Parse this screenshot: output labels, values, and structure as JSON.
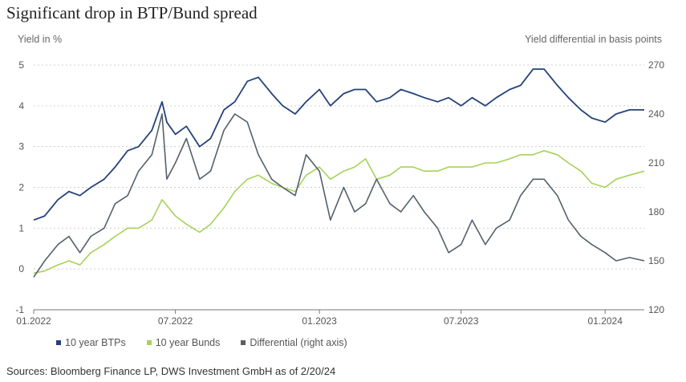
{
  "title": "Significant drop in BTP/Bund spread",
  "source": "Sources: Bloomberg Finance LP, DWS Investment GmbH as of 2/20/24",
  "colors": {
    "btp": "#24427a",
    "bund": "#a6d25a",
    "diff": "#56606a",
    "grid": "#cfcfcf",
    "axis": "#777777"
  },
  "chart_data": {
    "type": "line",
    "ylabel": "Yield in %",
    "y2label": "Yield differential in basis points",
    "ylim": [
      -1,
      5
    ],
    "y2lim": [
      120,
      270
    ],
    "yticks": [
      "-1",
      "0",
      "1",
      "2",
      "3",
      "4",
      "5"
    ],
    "y2ticks": [
      "120",
      "150",
      "180",
      "210",
      "240",
      "270"
    ],
    "xlim": [
      "2022-01-01",
      "2024-02-20"
    ],
    "xticks": [
      {
        "date": "2022-01-01",
        "label": "01.2022"
      },
      {
        "date": "2022-07-01",
        "label": "07.2022"
      },
      {
        "date": "2023-01-01",
        "label": "01.2023"
      },
      {
        "date": "2023-07-01",
        "label": "07.2023"
      },
      {
        "date": "2024-01-01",
        "label": "01.2024"
      }
    ],
    "grid": "horizontal dotted",
    "legend": "bottom-left",
    "series": [
      {
        "name": "10 year BTPs",
        "axis": "left",
        "x": [
          "2022-01-01",
          "2022-01-15",
          "2022-02-01",
          "2022-02-15",
          "2022-03-01",
          "2022-03-15",
          "2022-04-01",
          "2022-04-15",
          "2022-05-01",
          "2022-05-15",
          "2022-06-01",
          "2022-06-14",
          "2022-06-20",
          "2022-07-01",
          "2022-07-15",
          "2022-08-01",
          "2022-08-15",
          "2022-09-01",
          "2022-09-15",
          "2022-10-01",
          "2022-10-15",
          "2022-11-01",
          "2022-11-15",
          "2022-12-01",
          "2022-12-15",
          "2023-01-01",
          "2023-01-15",
          "2023-02-01",
          "2023-02-15",
          "2023-03-01",
          "2023-03-15",
          "2023-04-01",
          "2023-04-15",
          "2023-05-01",
          "2023-05-15",
          "2023-06-01",
          "2023-06-15",
          "2023-07-01",
          "2023-07-15",
          "2023-08-01",
          "2023-08-15",
          "2023-09-01",
          "2023-09-15",
          "2023-10-01",
          "2023-10-15",
          "2023-11-01",
          "2023-11-15",
          "2023-12-01",
          "2023-12-15",
          "2024-01-01",
          "2024-01-15",
          "2024-02-01",
          "2024-02-20"
        ],
        "values": [
          1.2,
          1.3,
          1.7,
          1.9,
          1.8,
          2.0,
          2.2,
          2.5,
          2.9,
          3.0,
          3.4,
          4.1,
          3.6,
          3.3,
          3.5,
          3.0,
          3.2,
          3.9,
          4.1,
          4.6,
          4.7,
          4.3,
          4.0,
          3.8,
          4.1,
          4.4,
          4.0,
          4.3,
          4.4,
          4.4,
          4.1,
          4.2,
          4.4,
          4.3,
          4.2,
          4.1,
          4.2,
          4.0,
          4.2,
          4.0,
          4.2,
          4.4,
          4.5,
          4.9,
          4.9,
          4.5,
          4.2,
          3.9,
          3.7,
          3.6,
          3.8,
          3.9,
          3.9
        ]
      },
      {
        "name": "10 year Bunds",
        "axis": "left",
        "x": [
          "2022-01-01",
          "2022-01-15",
          "2022-02-01",
          "2022-02-15",
          "2022-03-01",
          "2022-03-15",
          "2022-04-01",
          "2022-04-15",
          "2022-05-01",
          "2022-05-15",
          "2022-06-01",
          "2022-06-14",
          "2022-07-01",
          "2022-07-15",
          "2022-08-01",
          "2022-08-15",
          "2022-09-01",
          "2022-09-15",
          "2022-10-01",
          "2022-10-15",
          "2022-11-01",
          "2022-11-15",
          "2022-12-01",
          "2022-12-15",
          "2023-01-01",
          "2023-01-15",
          "2023-02-01",
          "2023-02-15",
          "2023-03-01",
          "2023-03-15",
          "2023-04-01",
          "2023-04-15",
          "2023-05-01",
          "2023-05-15",
          "2023-06-01",
          "2023-06-15",
          "2023-07-01",
          "2023-07-15",
          "2023-08-01",
          "2023-08-15",
          "2023-09-01",
          "2023-09-15",
          "2023-10-01",
          "2023-10-15",
          "2023-11-01",
          "2023-11-15",
          "2023-12-01",
          "2023-12-15",
          "2024-01-01",
          "2024-01-15",
          "2024-02-01",
          "2024-02-20"
        ],
        "values": [
          -0.1,
          -0.05,
          0.1,
          0.2,
          0.1,
          0.4,
          0.6,
          0.8,
          1.0,
          1.0,
          1.2,
          1.7,
          1.3,
          1.1,
          0.9,
          1.1,
          1.5,
          1.9,
          2.2,
          2.3,
          2.1,
          2.0,
          1.9,
          2.3,
          2.5,
          2.2,
          2.4,
          2.5,
          2.7,
          2.2,
          2.3,
          2.5,
          2.5,
          2.4,
          2.4,
          2.5,
          2.5,
          2.5,
          2.6,
          2.6,
          2.7,
          2.8,
          2.8,
          2.9,
          2.8,
          2.6,
          2.4,
          2.1,
          2.0,
          2.2,
          2.3,
          2.4
        ]
      },
      {
        "name": "Differential (right axis)",
        "axis": "right",
        "x": [
          "2022-01-01",
          "2022-01-15",
          "2022-02-01",
          "2022-02-15",
          "2022-03-01",
          "2022-03-15",
          "2022-04-01",
          "2022-04-15",
          "2022-05-01",
          "2022-05-15",
          "2022-06-01",
          "2022-06-14",
          "2022-06-20",
          "2022-07-01",
          "2022-07-15",
          "2022-08-01",
          "2022-08-15",
          "2022-09-01",
          "2022-09-15",
          "2022-10-01",
          "2022-10-15",
          "2022-11-01",
          "2022-11-15",
          "2022-12-01",
          "2022-12-15",
          "2023-01-01",
          "2023-01-15",
          "2023-02-01",
          "2023-02-15",
          "2023-03-01",
          "2023-03-15",
          "2023-04-01",
          "2023-04-15",
          "2023-05-01",
          "2023-05-15",
          "2023-06-01",
          "2023-06-15",
          "2023-07-01",
          "2023-07-15",
          "2023-08-01",
          "2023-08-15",
          "2023-09-01",
          "2023-09-15",
          "2023-10-01",
          "2023-10-15",
          "2023-11-01",
          "2023-11-15",
          "2023-12-01",
          "2023-12-15",
          "2024-01-01",
          "2024-01-15",
          "2024-02-01",
          "2024-02-20"
        ],
        "values": [
          140,
          150,
          160,
          165,
          155,
          165,
          170,
          185,
          190,
          205,
          215,
          240,
          200,
          210,
          225,
          200,
          205,
          230,
          240,
          235,
          215,
          200,
          195,
          190,
          215,
          205,
          175,
          195,
          180,
          185,
          200,
          185,
          180,
          190,
          180,
          170,
          155,
          160,
          175,
          160,
          170,
          175,
          190,
          200,
          200,
          190,
          175,
          165,
          160,
          155,
          150,
          152,
          150
        ]
      }
    ]
  }
}
